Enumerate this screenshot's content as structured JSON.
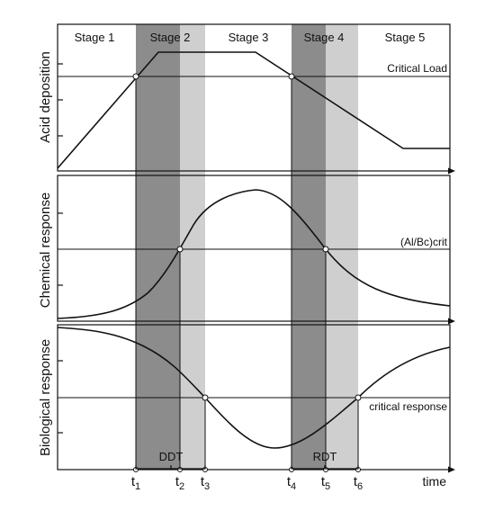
{
  "colors": {
    "dark_band": "#8c8c8c",
    "light_band": "#cfcfcf",
    "line": "#111111",
    "background": "#ffffff"
  },
  "stages": [
    "Stage 1",
    "Stage 2",
    "Stage 3",
    "Stage 4",
    "Stage 5"
  ],
  "panels": {
    "acid": {
      "ylabel": "Acid deposition",
      "threshold_label": "Critical Load"
    },
    "chemical": {
      "ylabel": "Chemical response",
      "threshold_label": "(Al/Bc)crit"
    },
    "biological": {
      "ylabel": "Biological response",
      "threshold_label": "critical response"
    }
  },
  "time_axis": {
    "label": "time",
    "ticks": [
      {
        "base": "t",
        "sub": "1"
      },
      {
        "base": "t",
        "sub": "2"
      },
      {
        "base": "t",
        "sub": "3"
      },
      {
        "base": "t",
        "sub": "4"
      },
      {
        "base": "t",
        "sub": "5"
      },
      {
        "base": "t",
        "sub": "6"
      }
    ]
  },
  "brackets": {
    "damage": "DDT",
    "recovery": "RDT"
  }
}
